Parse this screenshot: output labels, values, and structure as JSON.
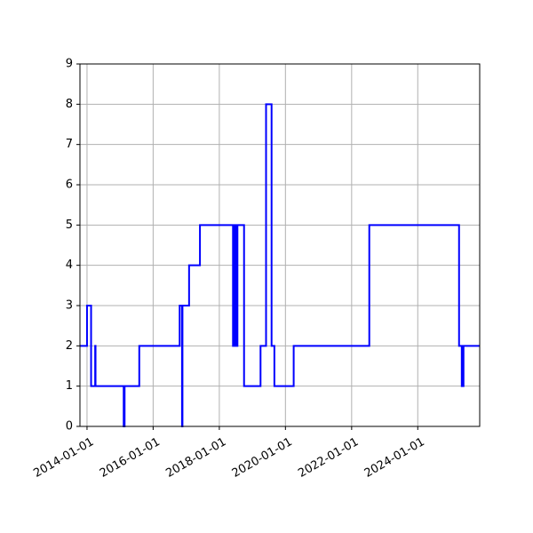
{
  "chart_data": {
    "type": "line",
    "title": "",
    "xlabel": "",
    "ylabel": "",
    "grid": true,
    "xlim": [
      "2013-10-15",
      "2025-11-15"
    ],
    "ylim": [
      0,
      9
    ],
    "x_ticks": [
      "2014-01-01",
      "2016-01-01",
      "2018-01-01",
      "2020-01-01",
      "2022-01-01",
      "2024-01-01"
    ],
    "y_ticks": [
      "0",
      "1",
      "2",
      "3",
      "4",
      "5",
      "6",
      "7",
      "8",
      "9"
    ],
    "series": [
      {
        "color": "#0000ff",
        "drawstyle": "steps-post",
        "x": [
          "2013-10-15",
          "2014-01-01",
          "2014-02-15",
          "2014-04-01",
          "2014-04-05",
          "2014-04-25",
          "2015-02-10",
          "2015-02-20",
          "2015-08-01",
          "2016-10-20",
          "2016-11-15",
          "2016-11-20",
          "2016-12-01",
          "2017-02-01",
          "2017-06-01",
          "2018-06-01",
          "2018-06-20",
          "2018-07-01",
          "2018-07-20",
          "2018-10-01",
          "2019-04-01",
          "2019-06-01",
          "2019-08-01",
          "2019-08-20",
          "2019-09-01",
          "2020-04-01",
          "2020-07-10",
          "2022-06-01",
          "2022-07-15",
          "2025-04-01",
          "2025-05-01",
          "2025-05-20",
          "2025-11-15"
        ],
        "y": [
          2,
          3,
          1,
          2,
          1,
          1,
          0,
          1,
          2,
          3,
          0,
          3,
          3,
          4,
          5,
          2,
          5,
          2,
          5,
          1,
          2,
          8,
          2,
          2,
          1,
          2,
          2,
          2,
          5,
          2,
          1,
          2,
          2
        ]
      }
    ]
  }
}
